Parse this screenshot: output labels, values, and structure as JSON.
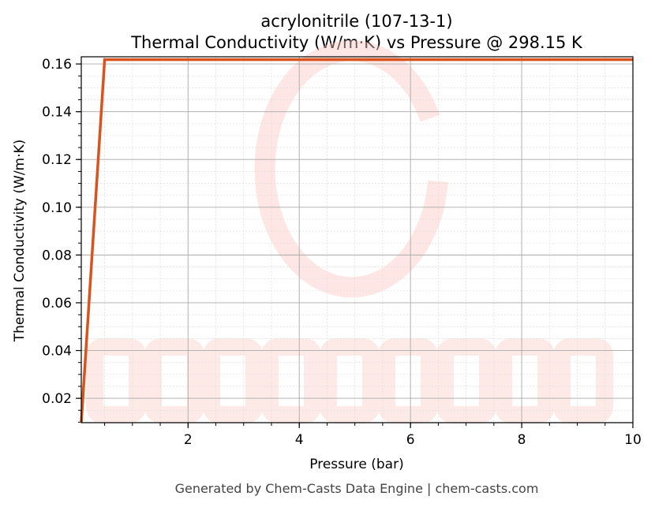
{
  "chart_data": {
    "type": "line",
    "title": "acrylonitrile (107-13-1)",
    "subtitle": "Thermal Conductivity (W/m·K) vs Pressure @ 298.15 K",
    "xlabel": "Pressure (bar)",
    "ylabel": "Thermal Conductivity (W/m·K)",
    "xlim": [
      0.08,
      10
    ],
    "ylim": [
      0.0098,
      0.163
    ],
    "xticks": [
      2,
      4,
      6,
      8,
      10
    ],
    "yticks": [
      0.02,
      0.04,
      0.06,
      0.08,
      0.1,
      0.12,
      0.14,
      0.16
    ],
    "grid": true,
    "series": [
      {
        "x": [
          0.08,
          0.5,
          10
        ],
        "y": [
          0.0098,
          0.1618,
          0.1618
        ],
        "color": "#d9531e"
      }
    ]
  },
  "watermark": "CHEMCASTS",
  "footer": "Generated by Chem-Casts Data Engine | chem-casts.com"
}
